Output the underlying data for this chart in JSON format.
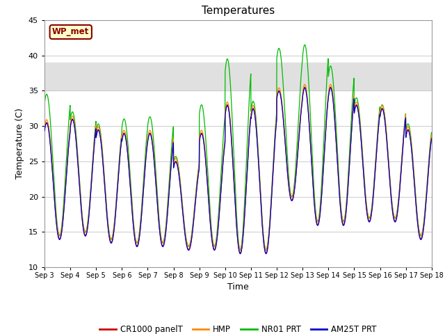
{
  "title": "Temperatures",
  "xlabel": "Time",
  "ylabel": "Temperature (C)",
  "ylim": [
    10,
    45
  ],
  "yticks": [
    10,
    15,
    20,
    25,
    30,
    35,
    40,
    45
  ],
  "shade_ymin": 35,
  "shade_ymax": 39.0,
  "x_start_day": 3,
  "x_end_day": 18,
  "x_tick_days": [
    3,
    4,
    5,
    6,
    7,
    8,
    9,
    10,
    11,
    12,
    13,
    14,
    15,
    16,
    17,
    18
  ],
  "x_tick_labels": [
    "Sep 3",
    "Sep 4",
    "Sep 5",
    "Sep 6",
    "Sep 7",
    "Sep 8",
    "Sep 9",
    "Sep 10",
    "Sep 11",
    "Sep 12",
    "Sep 13",
    "Sep 14",
    "Sep 15",
    "Sep 16",
    "Sep 17",
    "Sep 18"
  ],
  "series": {
    "CR1000 panelT": {
      "color": "#cc0000"
    },
    "HMP": {
      "color": "#ff8800"
    },
    "NR01 PRT": {
      "color": "#00bb00"
    },
    "AM25T PRT": {
      "color": "#0000cc"
    }
  },
  "station_label": "WP_met",
  "grid_color": "#cccccc",
  "daily_mins_base": [
    14.0,
    14.5,
    13.5,
    13.0,
    13.0,
    12.5,
    12.5,
    12.0,
    12.0,
    19.5,
    16.0,
    16.0,
    16.5,
    16.5,
    14.0,
    16.5
  ],
  "daily_maxs_base": [
    30.5,
    31.0,
    29.5,
    29.0,
    29.0,
    25.0,
    29.0,
    33.0,
    32.5,
    35.0,
    35.5,
    35.5,
    33.0,
    32.5,
    29.5,
    30.0
  ],
  "daily_maxs_nr01": [
    34.0,
    31.5,
    29.8,
    30.5,
    30.8,
    25.2,
    32.5,
    39.0,
    33.0,
    40.5,
    41.0,
    38.0,
    33.5,
    32.5,
    29.8,
    34.5
  ],
  "peak_hour": 14,
  "trough_hour": 5
}
